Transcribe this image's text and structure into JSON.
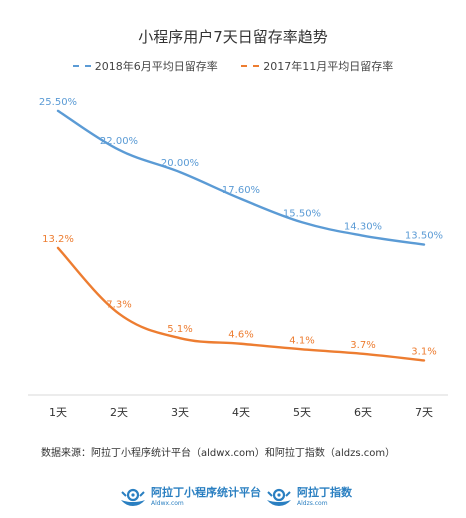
{
  "chart_data": {
    "type": "line",
    "title": "小程序用户7天日留存率趋势",
    "categories": [
      "1天",
      "2天",
      "3天",
      "4天",
      "5天",
      "6天",
      "7天"
    ],
    "series": [
      {
        "name": "2018年6月平均日留存率",
        "values": [
          25.5,
          22.0,
          20.0,
          17.6,
          15.5,
          14.3,
          13.5
        ],
        "labels": [
          "25.50%",
          "22.00%",
          "20.00%",
          "17.60%",
          "15.50%",
          "14.30%",
          "13.50%"
        ],
        "color": "#5b9bd5",
        "line_style": "solid",
        "legend_style": "dashed"
      },
      {
        "name": "2017年11月平均日留存率",
        "values": [
          13.2,
          7.3,
          5.1,
          4.6,
          4.1,
          3.7,
          3.1
        ],
        "labels": [
          "13.2%",
          "7.3%",
          "5.1%",
          "4.6%",
          "4.1%",
          "3.7%",
          "3.1%"
        ],
        "color": "#ed7d31",
        "line_style": "solid",
        "legend_style": "dashed"
      }
    ],
    "ylim": [
      0,
      28
    ],
    "xlabel": "",
    "ylabel": "",
    "grid": false,
    "legend_position": "top-center"
  },
  "footnote": "数据来源：阿拉丁小程序统计平台（aldwx.com）和阿拉丁指数（aldzs.com）",
  "logos": [
    {
      "name": "阿拉丁小程序统计平台",
      "url": "Aldwx.com",
      "icon": "aladdin-lamp-icon"
    },
    {
      "name": "阿拉丁指数",
      "url": "Aldzs.com",
      "icon": "aladdin-lamp-icon"
    }
  ]
}
